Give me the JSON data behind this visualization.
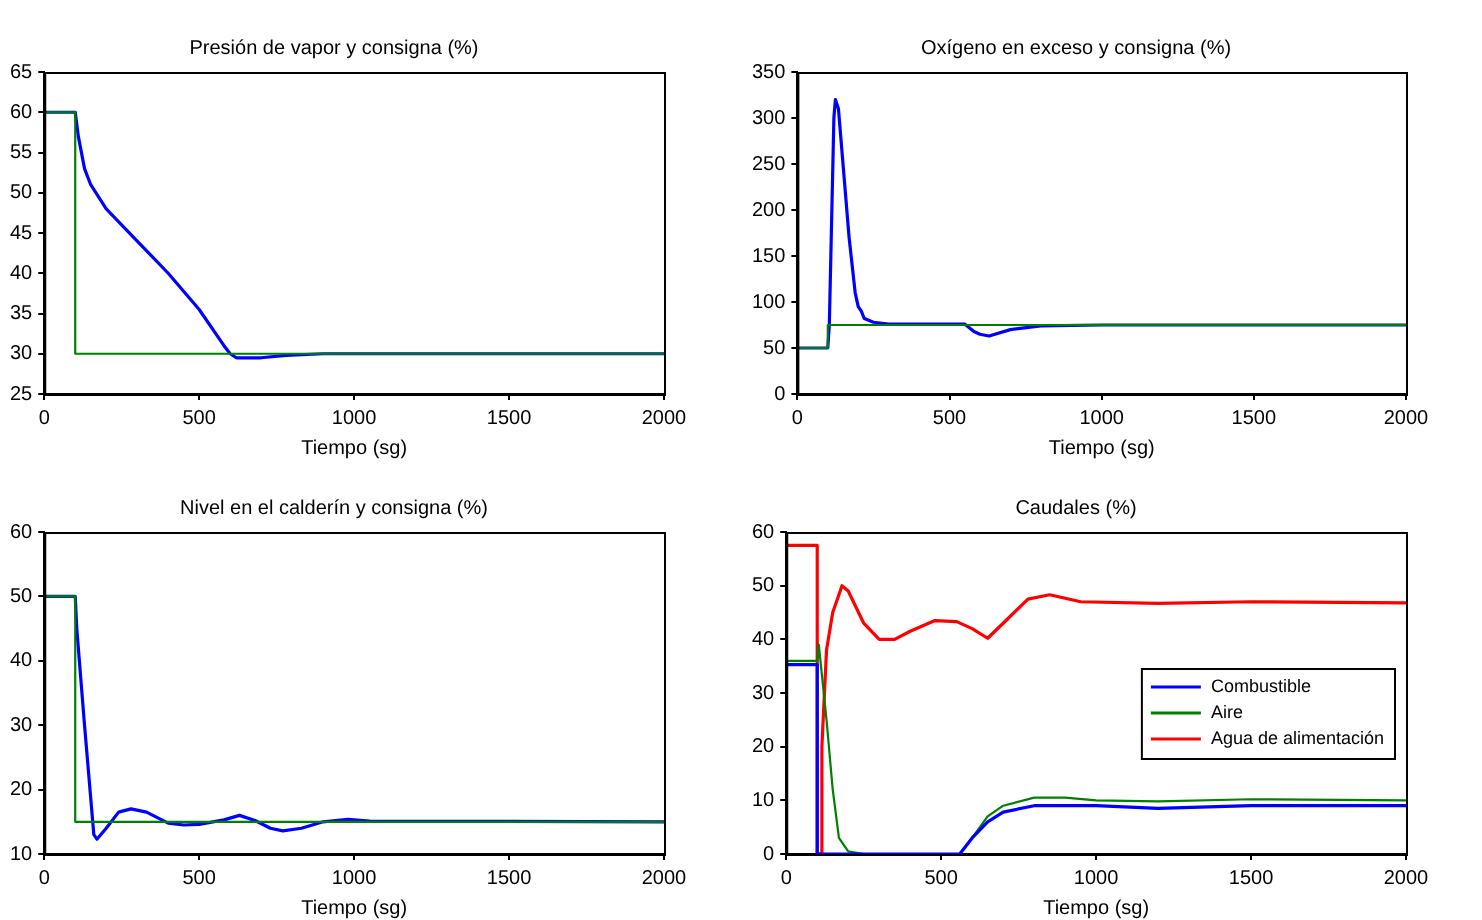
{
  "chart_data": [
    {
      "type": "line",
      "title": "Presión de vapor y consigna (%)",
      "xlabel": "Tiempo (sg)",
      "xlim": [
        0,
        2000
      ],
      "xticks": [
        0,
        500,
        1000,
        1500,
        2000
      ],
      "ylim": [
        25,
        65
      ],
      "yticks": [
        25,
        30,
        35,
        40,
        45,
        50,
        55,
        60,
        65
      ],
      "grid": false,
      "legend": false,
      "series": [
        {
          "color": "#008000",
          "x": [
            0,
            100,
            100,
            2000
          ],
          "values": [
            60,
            60,
            30,
            30
          ]
        },
        {
          "color": "#0000ff",
          "x": [
            0,
            100,
            110,
            130,
            150,
            200,
            300,
            400,
            500,
            580,
            600,
            620,
            700,
            780,
            900,
            2000
          ],
          "values": [
            60,
            60,
            57,
            53,
            51,
            48,
            44,
            40,
            35.5,
            31,
            30,
            29.5,
            29.5,
            29.8,
            30,
            30
          ]
        }
      ]
    },
    {
      "type": "line",
      "title": "Oxígeno en exceso y consigna (%)",
      "xlabel": "Tiempo (sg)",
      "xlim": [
        0,
        2000
      ],
      "xticks": [
        0,
        500,
        1000,
        1500,
        2000
      ],
      "ylim": [
        0,
        350
      ],
      "yticks": [
        0,
        50,
        100,
        150,
        200,
        250,
        300,
        350
      ],
      "grid": false,
      "legend": false,
      "series": [
        {
          "color": "#008000",
          "x": [
            0,
            100,
            100,
            2000
          ],
          "values": [
            50,
            50,
            75,
            75
          ]
        },
        {
          "color": "#0000ff",
          "x": [
            0,
            100,
            105,
            120,
            125,
            135,
            150,
            170,
            190,
            200,
            210,
            220,
            250,
            300,
            550,
            580,
            600,
            630,
            700,
            800,
            1000,
            2000
          ],
          "values": [
            50,
            50,
            75,
            300,
            320,
            310,
            250,
            170,
            110,
            95,
            90,
            82,
            78,
            76,
            76,
            68,
            65,
            63,
            70,
            74,
            75,
            75
          ]
        }
      ]
    },
    {
      "type": "line",
      "title": "Nivel en el calderín y consigna (%)",
      "xlabel": "Tiempo (sg)",
      "xlim": [
        0,
        2000
      ],
      "xticks": [
        0,
        500,
        1000,
        1500,
        2000
      ],
      "ylim": [
        10,
        60
      ],
      "yticks": [
        10,
        20,
        30,
        40,
        50,
        60
      ],
      "grid": false,
      "legend": false,
      "series": [
        {
          "color": "#008000",
          "x": [
            0,
            100,
            100,
            2000
          ],
          "values": [
            50,
            50,
            15,
            15
          ]
        },
        {
          "color": "#0000ff",
          "x": [
            0,
            100,
            105,
            130,
            160,
            170,
            200,
            240,
            280,
            330,
            400,
            450,
            500,
            580,
            630,
            680,
            730,
            770,
            830,
            900,
            980,
            1050,
            2000
          ],
          "values": [
            50,
            50,
            45,
            30,
            13,
            12.3,
            14,
            16.5,
            17,
            16.5,
            14.8,
            14.5,
            14.6,
            15.3,
            16,
            15.2,
            14,
            13.6,
            14,
            15,
            15.4,
            15.1,
            15
          ]
        }
      ]
    },
    {
      "type": "line",
      "title": "Caudales (%)",
      "xlabel": "Tiempo (sg)",
      "xlim": [
        0,
        2000
      ],
      "xticks": [
        0,
        500,
        1000,
        1500,
        2000
      ],
      "ylim": [
        0,
        60
      ],
      "yticks": [
        0,
        10,
        20,
        30,
        40,
        50,
        60
      ],
      "grid": false,
      "legend": "right",
      "series": [
        {
          "name": "Combustible",
          "color": "#0000ff",
          "x": [
            0,
            100,
            100,
            560,
            600,
            650,
            700,
            800,
            1000,
            1200,
            1500,
            2000
          ],
          "values": [
            35.3,
            35.3,
            0,
            0,
            3,
            6,
            7.8,
            9,
            9,
            8.5,
            9,
            9
          ]
        },
        {
          "name": "Aire",
          "color": "#008000",
          "x": [
            0,
            100,
            105,
            130,
            150,
            170,
            200,
            250,
            560,
            600,
            650,
            700,
            800,
            900,
            1000,
            1200,
            1500,
            2000
          ],
          "values": [
            36,
            36,
            39,
            25,
            12,
            3,
            0.5,
            0,
            0,
            3,
            7,
            9,
            10.5,
            10.5,
            10,
            9.8,
            10.2,
            10
          ]
        },
        {
          "name": "Agua de alimentación",
          "color": "#ff0000",
          "x": [
            0,
            100,
            100,
            110,
            115,
            130,
            150,
            180,
            200,
            250,
            300,
            350,
            400,
            480,
            550,
            600,
            650,
            700,
            780,
            850,
            950,
            1200,
            1500,
            2000
          ],
          "values": [
            57.5,
            57.5,
            0,
            0,
            20,
            38,
            45,
            50,
            49,
            43,
            40,
            40,
            41.5,
            43.5,
            43.3,
            42,
            40.2,
            43,
            47.5,
            48.3,
            47,
            46.7,
            47,
            46.8
          ]
        }
      ]
    }
  ]
}
